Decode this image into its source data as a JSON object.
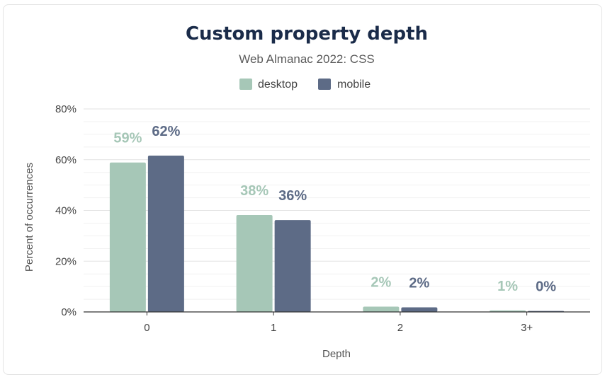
{
  "chart_data": {
    "type": "bar",
    "title": "Custom property depth",
    "subtitle": "Web Almanac 2022: CSS",
    "xlabel": "Depth",
    "ylabel": "Percent of occurrences",
    "categories": [
      "0",
      "1",
      "2",
      "3+"
    ],
    "series": [
      {
        "name": "desktop",
        "color": "#a6c7b7",
        "values": [
          0.589,
          0.382,
          0.021,
          0.006
        ],
        "labels": [
          "59%",
          "38%",
          "2%",
          "1%"
        ]
      },
      {
        "name": "mobile",
        "color": "#5d6b86",
        "values": [
          0.616,
          0.362,
          0.018,
          0.004
        ],
        "labels": [
          "62%",
          "36%",
          "2%",
          "0%"
        ]
      }
    ],
    "ylim": [
      0,
      0.8
    ],
    "yticks": [
      0,
      0.2,
      0.4,
      0.6,
      0.8
    ],
    "ytick_labels": [
      "0%",
      "20%",
      "40%",
      "60%",
      "80%"
    ],
    "grid": true,
    "legend_position": "top-center"
  }
}
